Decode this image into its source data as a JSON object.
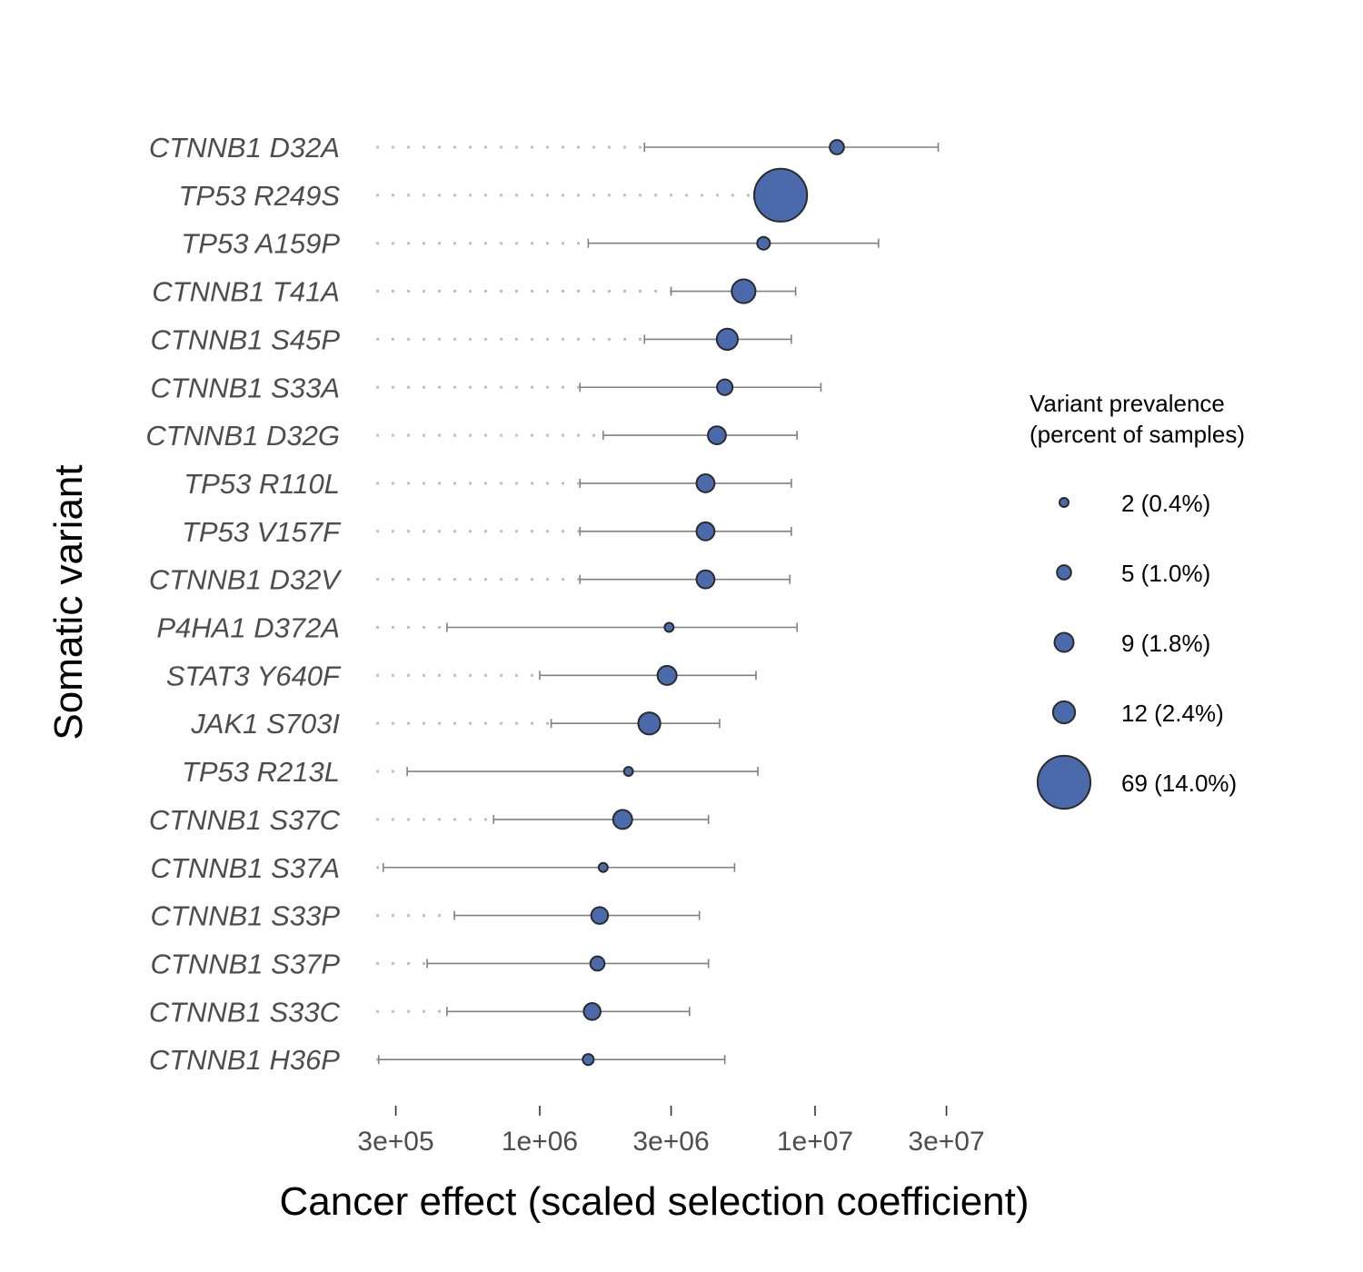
{
  "chart_data": {
    "type": "scatter",
    "xlabel": "Cancer effect (scaled selection coefficient)",
    "ylabel": "Somatic variant",
    "x_scale": "log10",
    "x_ticks": [
      300000,
      1000000,
      3000000,
      10000000,
      30000000
    ],
    "x_tick_labels": [
      "3e+05",
      "1e+06",
      "3e+06",
      "1e+07",
      "3e+07"
    ],
    "xlim": [
      200000,
      60000000
    ],
    "point_color": "#4a6aac",
    "point_outline_color": "#2b2b2b",
    "ci_color": "#808080",
    "dotted_color": "#c0c0c0",
    "legend": {
      "title_line1": "Variant prevalence",
      "title_line2": "(percent of samples)",
      "entries": [
        {
          "count": 2,
          "label": "2 (0.4%)"
        },
        {
          "count": 5,
          "label": "5 (1.0%)"
        },
        {
          "count": 9,
          "label": "9 (1.8%)"
        },
        {
          "count": 12,
          "label": "12 (2.4%)"
        },
        {
          "count": 69,
          "label": "69 (14.0%)"
        }
      ]
    },
    "variants": [
      {
        "label": "CTNNB1 D32A",
        "effect": 12000000,
        "ci_low": 2400000,
        "ci_high": 28000000,
        "count": 5
      },
      {
        "label": "TP53 R249S",
        "effect": 7500000,
        "ci_low": 6000000,
        "ci_high": 8500000,
        "count": 69
      },
      {
        "label": "TP53 A159P",
        "effect": 6500000,
        "ci_low": 1500000,
        "ci_high": 17000000,
        "count": 4
      },
      {
        "label": "CTNNB1 T41A",
        "effect": 5500000,
        "ci_low": 3000000,
        "ci_high": 8500000,
        "count": 14
      },
      {
        "label": "CTNNB1 S45P",
        "effect": 4800000,
        "ci_low": 2400000,
        "ci_high": 8200000,
        "count": 11
      },
      {
        "label": "CTNNB1 S33A",
        "effect": 4700000,
        "ci_low": 1400000,
        "ci_high": 10500000,
        "count": 6
      },
      {
        "label": "CTNNB1 D32G",
        "effect": 4400000,
        "ci_low": 1700000,
        "ci_high": 8600000,
        "count": 8
      },
      {
        "label": "TP53 R110L",
        "effect": 4000000,
        "ci_low": 1400000,
        "ci_high": 8200000,
        "count": 8
      },
      {
        "label": "TP53 V157F",
        "effect": 4000000,
        "ci_low": 1400000,
        "ci_high": 8200000,
        "count": 8
      },
      {
        "label": "CTNNB1 D32V",
        "effect": 4000000,
        "ci_low": 1400000,
        "ci_high": 8100000,
        "count": 8
      },
      {
        "label": "P4HA1 D372A",
        "effect": 2950000,
        "ci_low": 460000,
        "ci_high": 8600000,
        "count": 2
      },
      {
        "label": "STAT3 Y640F",
        "effect": 2900000,
        "ci_low": 1000000,
        "ci_high": 6100000,
        "count": 9
      },
      {
        "label": "JAK1 S703I",
        "effect": 2500000,
        "ci_low": 1100000,
        "ci_high": 4500000,
        "count": 12
      },
      {
        "label": "TP53 R213L",
        "effect": 2100000,
        "ci_low": 330000,
        "ci_high": 6200000,
        "count": 2
      },
      {
        "label": "CTNNB1 S37C",
        "effect": 2000000,
        "ci_low": 680000,
        "ci_high": 4100000,
        "count": 9
      },
      {
        "label": "CTNNB1 S37A",
        "effect": 1700000,
        "ci_low": 270000,
        "ci_high": 5100000,
        "count": 2
      },
      {
        "label": "CTNNB1 S33P",
        "effect": 1650000,
        "ci_low": 490000,
        "ci_high": 3800000,
        "count": 7
      },
      {
        "label": "CTNNB1 S37P",
        "effect": 1620000,
        "ci_low": 390000,
        "ci_high": 4100000,
        "count": 5
      },
      {
        "label": "CTNNB1 S33C",
        "effect": 1550000,
        "ci_low": 460000,
        "ci_high": 3500000,
        "count": 7
      },
      {
        "label": "CTNNB1 H36P",
        "effect": 1500000,
        "ci_low": 260000,
        "ci_high": 4700000,
        "count": 3
      }
    ]
  }
}
